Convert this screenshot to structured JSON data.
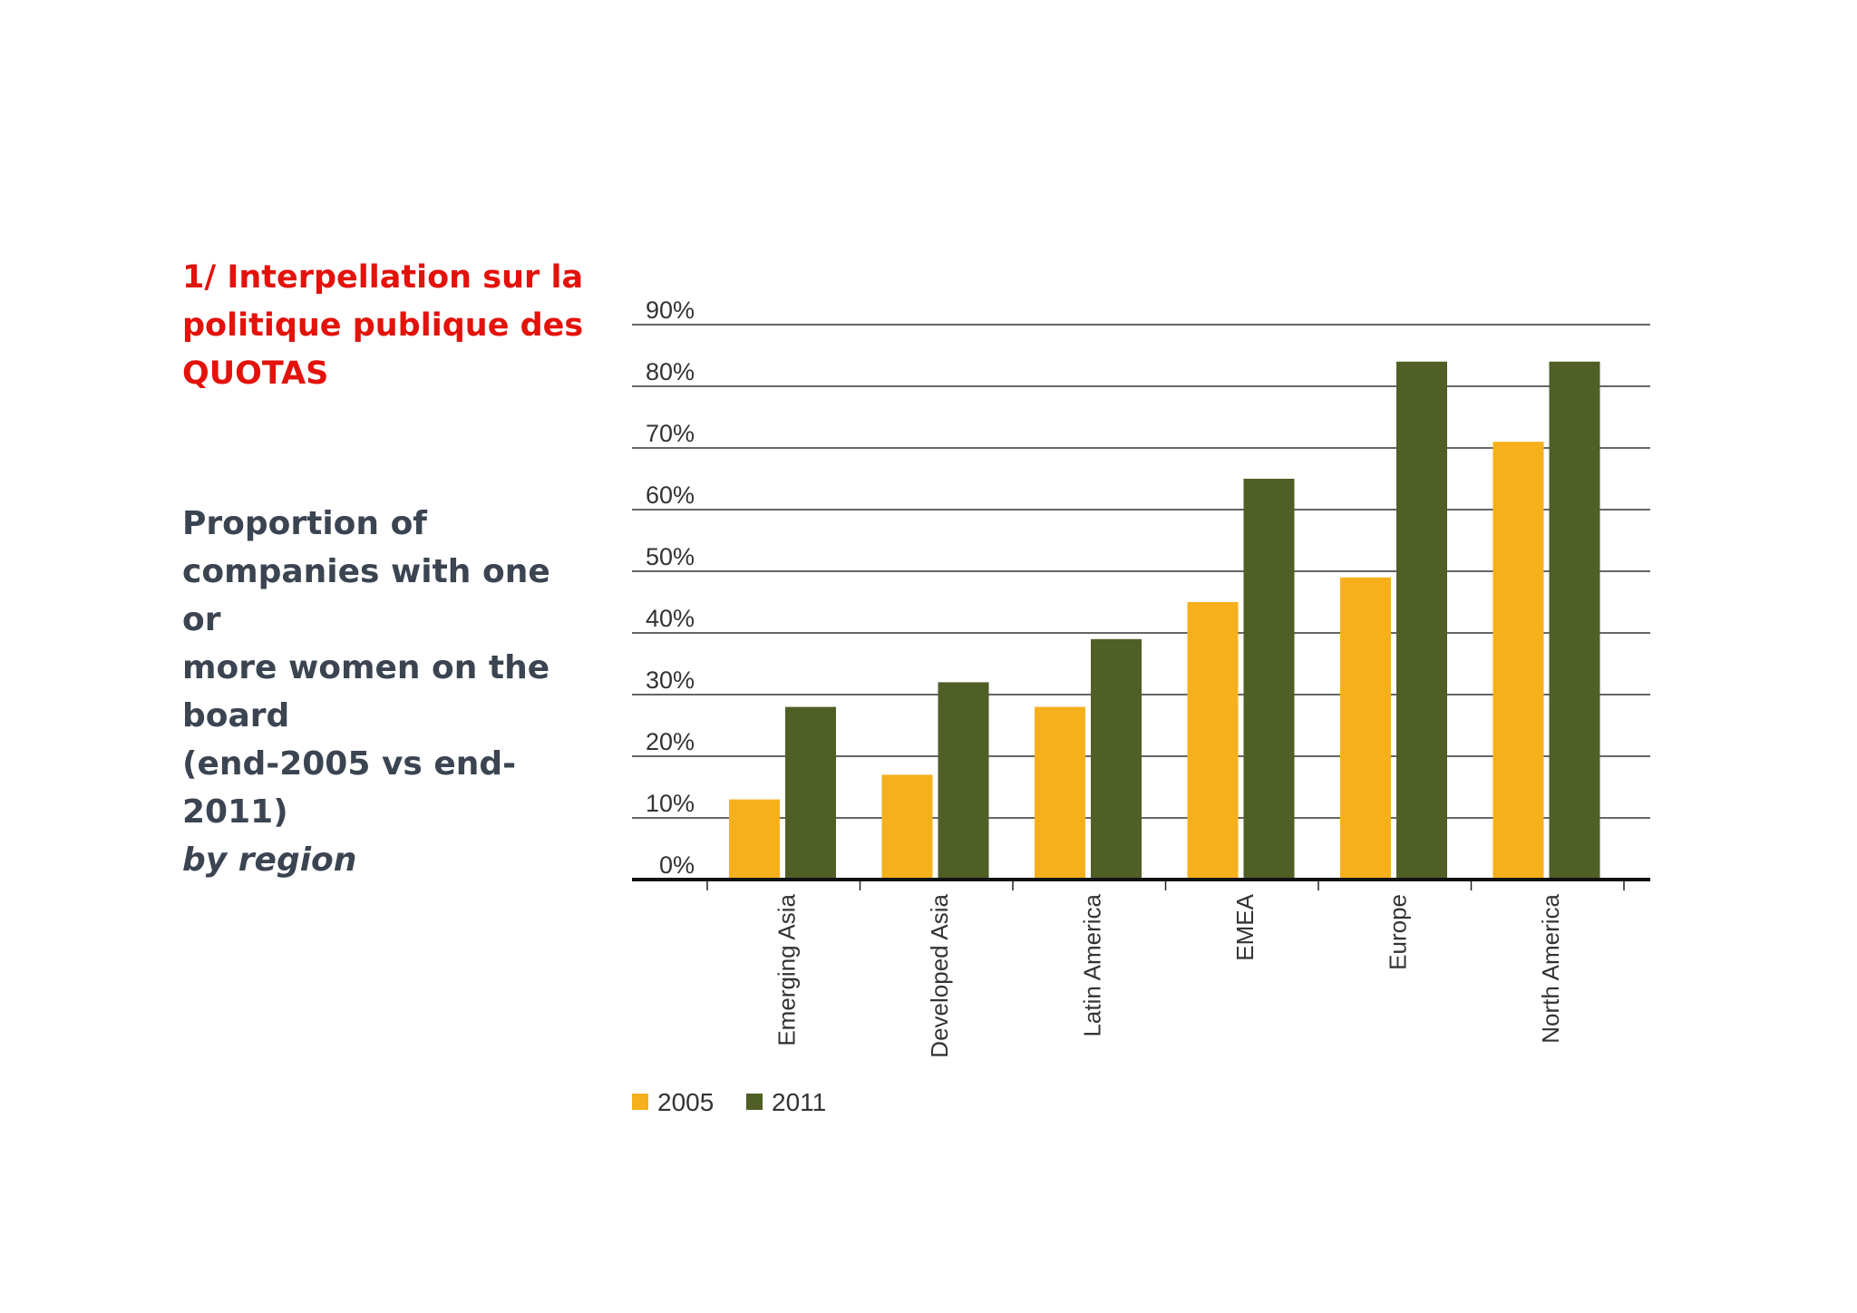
{
  "slide": {
    "heading_lines": [
      "1/ Interpellation sur la",
      "politique publique des",
      "QUOTAS"
    ],
    "subtitle_lines": [
      "Proportion of",
      "companies with one or",
      "more women on the",
      "board",
      "(end-2005 vs end-2011)"
    ],
    "subtitle_italic": "by region",
    "heading_color": "#e3120b",
    "subtitle_color": "#3b4451"
  },
  "chart_data": {
    "type": "bar",
    "categories": [
      "Emerging Asia",
      "Developed Asia",
      "Latin America",
      "EMEA",
      "Europe",
      "North America"
    ],
    "series": [
      {
        "name": "2005",
        "color": "#f5b01c",
        "values": [
          13,
          17,
          28,
          45,
          49,
          71
        ]
      },
      {
        "name": "2011",
        "color": "#4f5f26",
        "values": [
          28,
          32,
          39,
          65,
          84,
          84
        ]
      }
    ],
    "ylim": [
      0,
      90
    ],
    "yticks": [
      "0%",
      "10%",
      "20%",
      "30%",
      "40%",
      "50%",
      "60%",
      "70%",
      "80%",
      "90%"
    ],
    "grid": true,
    "legend_position": "bottom-left"
  }
}
